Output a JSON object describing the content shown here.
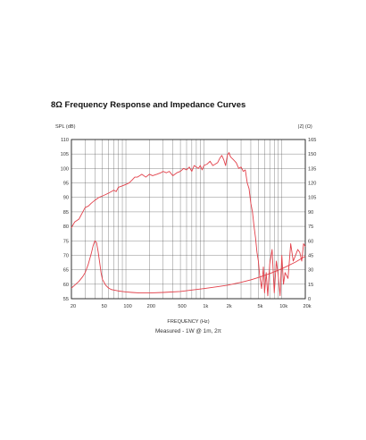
{
  "title": "8Ω Frequency Response and Impedance Curves",
  "chart_data": {
    "type": "line",
    "title": "8Ω Frequency Response and Impedance Curves",
    "x_scale": "log",
    "xlim": [
      20,
      20000
    ],
    "x_tick_values": [
      20,
      50,
      100,
      200,
      500,
      1000,
      2000,
      5000,
      10000,
      20000
    ],
    "x_tick_labels": [
      "20",
      "50",
      "100",
      "200",
      "500",
      "1k",
      "2k",
      "5k",
      "10k",
      "20k"
    ],
    "xlabel": "FREQUENCY (Hz)",
    "caption": "Measured - 1W @ 1m, 2π",
    "y_left": {
      "label": "SPL (dB)",
      "lim": [
        55,
        110
      ],
      "ticks": [
        55,
        60,
        65,
        70,
        75,
        80,
        85,
        90,
        95,
        100,
        105,
        110
      ],
      "tick_labels": [
        "55",
        "60",
        "65",
        "70",
        "75",
        "80",
        "85",
        "90",
        "95",
        "100",
        "105",
        "110"
      ]
    },
    "y_right": {
      "label": "|Z| (Ω)",
      "lim": [
        0,
        165
      ],
      "ticks": [
        0,
        15,
        30,
        45,
        60,
        75,
        90,
        105,
        120,
        135,
        150,
        165
      ],
      "tick_labels": [
        "0",
        "15",
        "30",
        "45",
        "60",
        "75",
        "90",
        "105",
        "120",
        "135",
        "150",
        "165"
      ]
    },
    "grid": true,
    "line_color": "#e2404a",
    "series": [
      {
        "axis": "left",
        "x": [
          20,
          22,
          25,
          28,
          30,
          33,
          36,
          40,
          45,
          50,
          55,
          60,
          65,
          70,
          75,
          80,
          90,
          100,
          110,
          120,
          130,
          140,
          150,
          160,
          180,
          200,
          220,
          250,
          280,
          300,
          330,
          360,
          400,
          450,
          500,
          550,
          600,
          650,
          700,
          750,
          800,
          850,
          900,
          950,
          1000,
          1100,
          1200,
          1300,
          1400,
          1500,
          1600,
          1700,
          1800,
          1900,
          2000,
          2100,
          2200,
          2400,
          2600,
          2800,
          3000,
          3200,
          3400,
          3600,
          3800,
          4000,
          4200,
          4400,
          4600,
          4800,
          5000,
          5200,
          5500,
          5800,
          6000,
          6300,
          6600,
          7000,
          7500,
          8000,
          8500,
          9000,
          9500,
          10000,
          10500,
          11000,
          12000,
          13000,
          14000,
          15000,
          16000,
          17000,
          18000,
          19000,
          20000
        ],
        "values": [
          79.5,
          81.5,
          82.5,
          85,
          86.5,
          87,
          88,
          89,
          90,
          90.5,
          91,
          91.5,
          92,
          92.5,
          92,
          93.5,
          94,
          94.5,
          95,
          96,
          97,
          97,
          97.5,
          98,
          97,
          98,
          97.5,
          98,
          98.5,
          99,
          98.5,
          99,
          97.5,
          98.5,
          99,
          100,
          99.5,
          100.5,
          99,
          101,
          100.5,
          100,
          101,
          99.5,
          101,
          101.5,
          102.5,
          101,
          101.5,
          102,
          103.5,
          104.5,
          103,
          101,
          104.5,
          105.5,
          104,
          103,
          102,
          100,
          100.5,
          99,
          99.5,
          95,
          93,
          88,
          85,
          80,
          76,
          71,
          68,
          63,
          58.5,
          66,
          57,
          64,
          56,
          67,
          72,
          57,
          68,
          63,
          56,
          70,
          60,
          64,
          62,
          74,
          68,
          70,
          72,
          71,
          68,
          74,
          73
        ]
      },
      {
        "axis": "right",
        "x": [
          20,
          22,
          25,
          28,
          30,
          33,
          36,
          38,
          40,
          42,
          44,
          46,
          48,
          50,
          55,
          60,
          65,
          70,
          80,
          90,
          100,
          120,
          150,
          200,
          300,
          500,
          700,
          1000,
          1500,
          2000,
          3000,
          4000,
          5000,
          7000,
          10000,
          15000,
          20000
        ],
        "values": [
          11,
          14,
          18,
          23,
          27,
          36,
          47,
          55,
          60,
          58,
          49,
          38,
          27,
          20,
          14,
          11,
          9.5,
          9,
          8,
          7.5,
          7,
          6.5,
          6,
          6,
          6.5,
          7.5,
          9,
          10.5,
          12.5,
          14,
          17,
          19.5,
          22,
          26,
          31,
          38,
          44
        ]
      }
    ]
  }
}
